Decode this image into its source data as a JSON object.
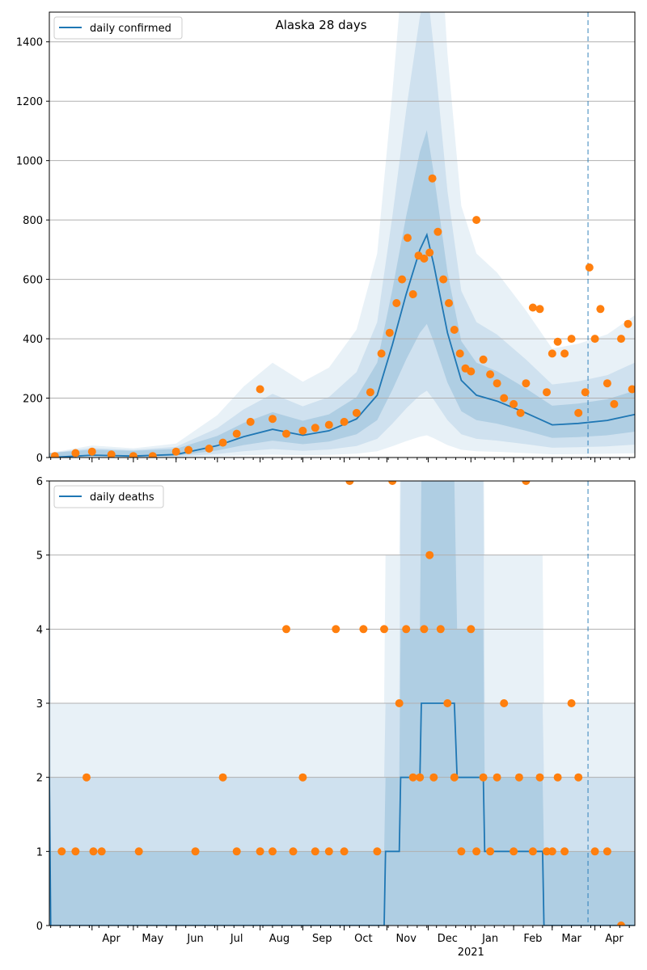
{
  "colors": {
    "line": "#1f77b4",
    "points": "#ff7f0e",
    "band": "#1f77b4",
    "grid": "#b0b0b0",
    "vline": "#1f77b4"
  },
  "chart_data": [
    {
      "type": "line",
      "title": "Alaska 28 days",
      "legend": [
        "daily confirmed"
      ],
      "legend_position": "top-left",
      "grid": "horizontal",
      "ylim": [
        0,
        1500
      ],
      "yticks": [
        0,
        200,
        400,
        600,
        800,
        1000,
        1200,
        1400
      ],
      "x_date_range": [
        "2020-03-01",
        "2021-04-30"
      ],
      "forecast_start": "2021-03-27",
      "series": [
        {
          "name": "daily confirmed",
          "style": "line",
          "x": [
            "2020-03-01",
            "2020-04-01",
            "2020-05-01",
            "2020-06-01",
            "2020-07-01",
            "2020-07-20",
            "2020-08-10",
            "2020-09-01",
            "2020-09-20",
            "2020-10-10",
            "2020-10-25",
            "2020-11-05",
            "2020-11-15",
            "2020-11-25",
            "2020-11-30",
            "2020-12-05",
            "2020-12-15",
            "2020-12-25",
            "2021-01-05",
            "2021-01-20",
            "2021-02-10",
            "2021-03-01",
            "2021-03-20",
            "2021-04-10",
            "2021-04-30"
          ],
          "y": [
            0,
            8,
            5,
            10,
            40,
            70,
            95,
            75,
            90,
            130,
            210,
            380,
            550,
            700,
            750,
            650,
            420,
            260,
            210,
            190,
            150,
            110,
            115,
            125,
            145
          ]
        },
        {
          "name": "",
          "style": "points",
          "x": [
            "2020-03-05",
            "2020-03-20",
            "2020-04-01",
            "2020-04-15",
            "2020-05-01",
            "2020-05-15",
            "2020-06-01",
            "2020-06-10",
            "2020-06-25",
            "2020-07-05",
            "2020-07-15",
            "2020-07-25",
            "2020-08-01",
            "2020-08-10",
            "2020-08-20",
            "2020-09-01",
            "2020-09-10",
            "2020-09-20",
            "2020-10-01",
            "2020-10-10",
            "2020-10-20",
            "2020-10-28",
            "2020-11-03",
            "2020-11-08",
            "2020-11-12",
            "2020-11-16",
            "2020-11-20",
            "2020-11-24",
            "2020-11-28",
            "2020-12-02",
            "2020-12-04",
            "2020-12-08",
            "2020-12-12",
            "2020-12-16",
            "2020-12-20",
            "2020-12-24",
            "2020-12-28",
            "2021-01-01",
            "2021-01-05",
            "2021-01-10",
            "2021-01-15",
            "2021-01-20",
            "2021-01-25",
            "2021-02-01",
            "2021-02-06",
            "2021-02-10",
            "2021-02-15",
            "2021-02-20",
            "2021-02-25",
            "2021-03-01",
            "2021-03-05",
            "2021-03-10",
            "2021-03-15",
            "2021-03-20",
            "2021-03-25",
            "2021-03-28",
            "2021-04-01",
            "2021-04-05",
            "2021-04-10",
            "2021-04-15",
            "2021-04-20",
            "2021-04-25",
            "2021-04-28"
          ],
          "y": [
            5,
            15,
            20,
            10,
            5,
            5,
            20,
            25,
            30,
            50,
            80,
            120,
            230,
            130,
            80,
            90,
            100,
            110,
            120,
            150,
            220,
            350,
            420,
            520,
            600,
            740,
            550,
            680,
            670,
            690,
            940,
            760,
            600,
            520,
            430,
            350,
            300,
            290,
            800,
            330,
            280,
            250,
            200,
            180,
            150,
            250,
            505,
            500,
            220,
            350,
            390,
            350,
            400,
            150,
            220,
            640,
            400,
            500,
            250,
            180,
            400,
            450,
            230
          ]
        }
      ]
    },
    {
      "type": "line",
      "title": "",
      "legend": [
        "daily deaths"
      ],
      "legend_position": "top-left",
      "grid": "horizontal",
      "ylim": [
        0,
        6
      ],
      "yticks": [
        0,
        1,
        2,
        3,
        4,
        5,
        6
      ],
      "xtick_labels": [
        "Apr",
        "May",
        "Jun",
        "Jul",
        "Aug",
        "Sep",
        "Oct",
        "Nov",
        "Dec",
        "Jan",
        "Feb",
        "Mar",
        "Apr"
      ],
      "x_secondary_label": "2021",
      "forecast_start": "2021-03-27",
      "series": [
        {
          "name": "daily deaths",
          "style": "line",
          "x": [
            "2020-03-01",
            "2020-03-02",
            "2020-10-30",
            "2020-10-31",
            "2020-11-10",
            "2020-11-11",
            "2020-11-25",
            "2020-11-26",
            "2020-12-20",
            "2020-12-21",
            "2020-12-22",
            "2021-01-10",
            "2021-01-11",
            "2021-02-22",
            "2021-02-23",
            "2021-04-30"
          ],
          "y": [
            2,
            0,
            0,
            1,
            1,
            2,
            2,
            3,
            3,
            2.5,
            2,
            2,
            1,
            1,
            0,
            0
          ]
        },
        {
          "name": "",
          "style": "points",
          "x": [
            "2020-03-10",
            "2020-03-20",
            "2020-03-28",
            "2020-04-02",
            "2020-04-08",
            "2020-05-05",
            "2020-06-15",
            "2020-07-05",
            "2020-07-15",
            "2020-08-01",
            "2020-08-10",
            "2020-08-20",
            "2020-08-25",
            "2020-09-01",
            "2020-09-10",
            "2020-09-20",
            "2020-09-25",
            "2020-10-01",
            "2020-10-05",
            "2020-10-15",
            "2020-10-25",
            "2020-10-30",
            "2020-11-05",
            "2020-11-10",
            "2020-11-15",
            "2020-11-20",
            "2020-11-25",
            "2020-11-28",
            "2020-12-02",
            "2020-12-05",
            "2020-12-10",
            "2020-12-15",
            "2020-12-20",
            "2020-12-25",
            "2021-01-01",
            "2021-01-05",
            "2021-01-10",
            "2021-01-15",
            "2021-01-20",
            "2021-01-25",
            "2021-02-01",
            "2021-02-05",
            "2021-02-10",
            "2021-02-15",
            "2021-02-20",
            "2021-02-25",
            "2021-03-01",
            "2021-03-05",
            "2021-03-10",
            "2021-03-15",
            "2021-03-20",
            "2021-04-01",
            "2021-04-10",
            "2021-04-20"
          ],
          "y": [
            1,
            1,
            2,
            1,
            1,
            1,
            1,
            2,
            1,
            1,
            1,
            4,
            1,
            2,
            1,
            1,
            4,
            1,
            6,
            4,
            1,
            4,
            6,
            3,
            4,
            2,
            2,
            4,
            5,
            2,
            4,
            3,
            2,
            1,
            4,
            1,
            2,
            1,
            2,
            3,
            1,
            2,
            6,
            1,
            2,
            1,
            1,
            2,
            1,
            3,
            2,
            1,
            1,
            0
          ]
        }
      ]
    }
  ]
}
